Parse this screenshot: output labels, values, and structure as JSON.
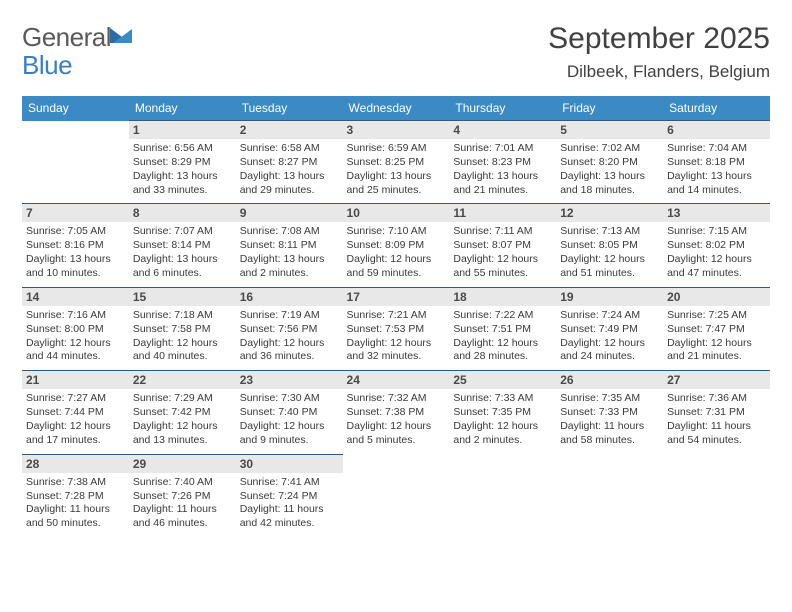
{
  "logo": {
    "word1": "General",
    "word2": "Blue"
  },
  "title": "September 2025",
  "location": "Dilbeek, Flanders, Belgium",
  "header_bg": "#3b8ac4",
  "header_fg": "#ffffff",
  "rule_color": "#2f5a7d",
  "daynum_bg": "#e8e8e8",
  "weekdays": [
    "Sunday",
    "Monday",
    "Tuesday",
    "Wednesday",
    "Thursday",
    "Friday",
    "Saturday"
  ],
  "weeks": [
    [
      null,
      {
        "n": "1",
        "rise": "Sunrise: 6:56 AM",
        "set": "Sunset: 8:29 PM",
        "day1": "Daylight: 13 hours",
        "day2": "and 33 minutes."
      },
      {
        "n": "2",
        "rise": "Sunrise: 6:58 AM",
        "set": "Sunset: 8:27 PM",
        "day1": "Daylight: 13 hours",
        "day2": "and 29 minutes."
      },
      {
        "n": "3",
        "rise": "Sunrise: 6:59 AM",
        "set": "Sunset: 8:25 PM",
        "day1": "Daylight: 13 hours",
        "day2": "and 25 minutes."
      },
      {
        "n": "4",
        "rise": "Sunrise: 7:01 AM",
        "set": "Sunset: 8:23 PM",
        "day1": "Daylight: 13 hours",
        "day2": "and 21 minutes."
      },
      {
        "n": "5",
        "rise": "Sunrise: 7:02 AM",
        "set": "Sunset: 8:20 PM",
        "day1": "Daylight: 13 hours",
        "day2": "and 18 minutes."
      },
      {
        "n": "6",
        "rise": "Sunrise: 7:04 AM",
        "set": "Sunset: 8:18 PM",
        "day1": "Daylight: 13 hours",
        "day2": "and 14 minutes."
      }
    ],
    [
      {
        "n": "7",
        "rise": "Sunrise: 7:05 AM",
        "set": "Sunset: 8:16 PM",
        "day1": "Daylight: 13 hours",
        "day2": "and 10 minutes."
      },
      {
        "n": "8",
        "rise": "Sunrise: 7:07 AM",
        "set": "Sunset: 8:14 PM",
        "day1": "Daylight: 13 hours",
        "day2": "and 6 minutes."
      },
      {
        "n": "9",
        "rise": "Sunrise: 7:08 AM",
        "set": "Sunset: 8:11 PM",
        "day1": "Daylight: 13 hours",
        "day2": "and 2 minutes."
      },
      {
        "n": "10",
        "rise": "Sunrise: 7:10 AM",
        "set": "Sunset: 8:09 PM",
        "day1": "Daylight: 12 hours",
        "day2": "and 59 minutes."
      },
      {
        "n": "11",
        "rise": "Sunrise: 7:11 AM",
        "set": "Sunset: 8:07 PM",
        "day1": "Daylight: 12 hours",
        "day2": "and 55 minutes."
      },
      {
        "n": "12",
        "rise": "Sunrise: 7:13 AM",
        "set": "Sunset: 8:05 PM",
        "day1": "Daylight: 12 hours",
        "day2": "and 51 minutes."
      },
      {
        "n": "13",
        "rise": "Sunrise: 7:15 AM",
        "set": "Sunset: 8:02 PM",
        "day1": "Daylight: 12 hours",
        "day2": "and 47 minutes."
      }
    ],
    [
      {
        "n": "14",
        "rise": "Sunrise: 7:16 AM",
        "set": "Sunset: 8:00 PM",
        "day1": "Daylight: 12 hours",
        "day2": "and 44 minutes."
      },
      {
        "n": "15",
        "rise": "Sunrise: 7:18 AM",
        "set": "Sunset: 7:58 PM",
        "day1": "Daylight: 12 hours",
        "day2": "and 40 minutes."
      },
      {
        "n": "16",
        "rise": "Sunrise: 7:19 AM",
        "set": "Sunset: 7:56 PM",
        "day1": "Daylight: 12 hours",
        "day2": "and 36 minutes."
      },
      {
        "n": "17",
        "rise": "Sunrise: 7:21 AM",
        "set": "Sunset: 7:53 PM",
        "day1": "Daylight: 12 hours",
        "day2": "and 32 minutes."
      },
      {
        "n": "18",
        "rise": "Sunrise: 7:22 AM",
        "set": "Sunset: 7:51 PM",
        "day1": "Daylight: 12 hours",
        "day2": "and 28 minutes."
      },
      {
        "n": "19",
        "rise": "Sunrise: 7:24 AM",
        "set": "Sunset: 7:49 PM",
        "day1": "Daylight: 12 hours",
        "day2": "and 24 minutes."
      },
      {
        "n": "20",
        "rise": "Sunrise: 7:25 AM",
        "set": "Sunset: 7:47 PM",
        "day1": "Daylight: 12 hours",
        "day2": "and 21 minutes."
      }
    ],
    [
      {
        "n": "21",
        "rise": "Sunrise: 7:27 AM",
        "set": "Sunset: 7:44 PM",
        "day1": "Daylight: 12 hours",
        "day2": "and 17 minutes."
      },
      {
        "n": "22",
        "rise": "Sunrise: 7:29 AM",
        "set": "Sunset: 7:42 PM",
        "day1": "Daylight: 12 hours",
        "day2": "and 13 minutes."
      },
      {
        "n": "23",
        "rise": "Sunrise: 7:30 AM",
        "set": "Sunset: 7:40 PM",
        "day1": "Daylight: 12 hours",
        "day2": "and 9 minutes."
      },
      {
        "n": "24",
        "rise": "Sunrise: 7:32 AM",
        "set": "Sunset: 7:38 PM",
        "day1": "Daylight: 12 hours",
        "day2": "and 5 minutes."
      },
      {
        "n": "25",
        "rise": "Sunrise: 7:33 AM",
        "set": "Sunset: 7:35 PM",
        "day1": "Daylight: 12 hours",
        "day2": "and 2 minutes."
      },
      {
        "n": "26",
        "rise": "Sunrise: 7:35 AM",
        "set": "Sunset: 7:33 PM",
        "day1": "Daylight: 11 hours",
        "day2": "and 58 minutes."
      },
      {
        "n": "27",
        "rise": "Sunrise: 7:36 AM",
        "set": "Sunset: 7:31 PM",
        "day1": "Daylight: 11 hours",
        "day2": "and 54 minutes."
      }
    ],
    [
      {
        "n": "28",
        "rise": "Sunrise: 7:38 AM",
        "set": "Sunset: 7:28 PM",
        "day1": "Daylight: 11 hours",
        "day2": "and 50 minutes."
      },
      {
        "n": "29",
        "rise": "Sunrise: 7:40 AM",
        "set": "Sunset: 7:26 PM",
        "day1": "Daylight: 11 hours",
        "day2": "and 46 minutes."
      },
      {
        "n": "30",
        "rise": "Sunrise: 7:41 AM",
        "set": "Sunset: 7:24 PM",
        "day1": "Daylight: 11 hours",
        "day2": "and 42 minutes."
      },
      null,
      null,
      null,
      null
    ]
  ]
}
